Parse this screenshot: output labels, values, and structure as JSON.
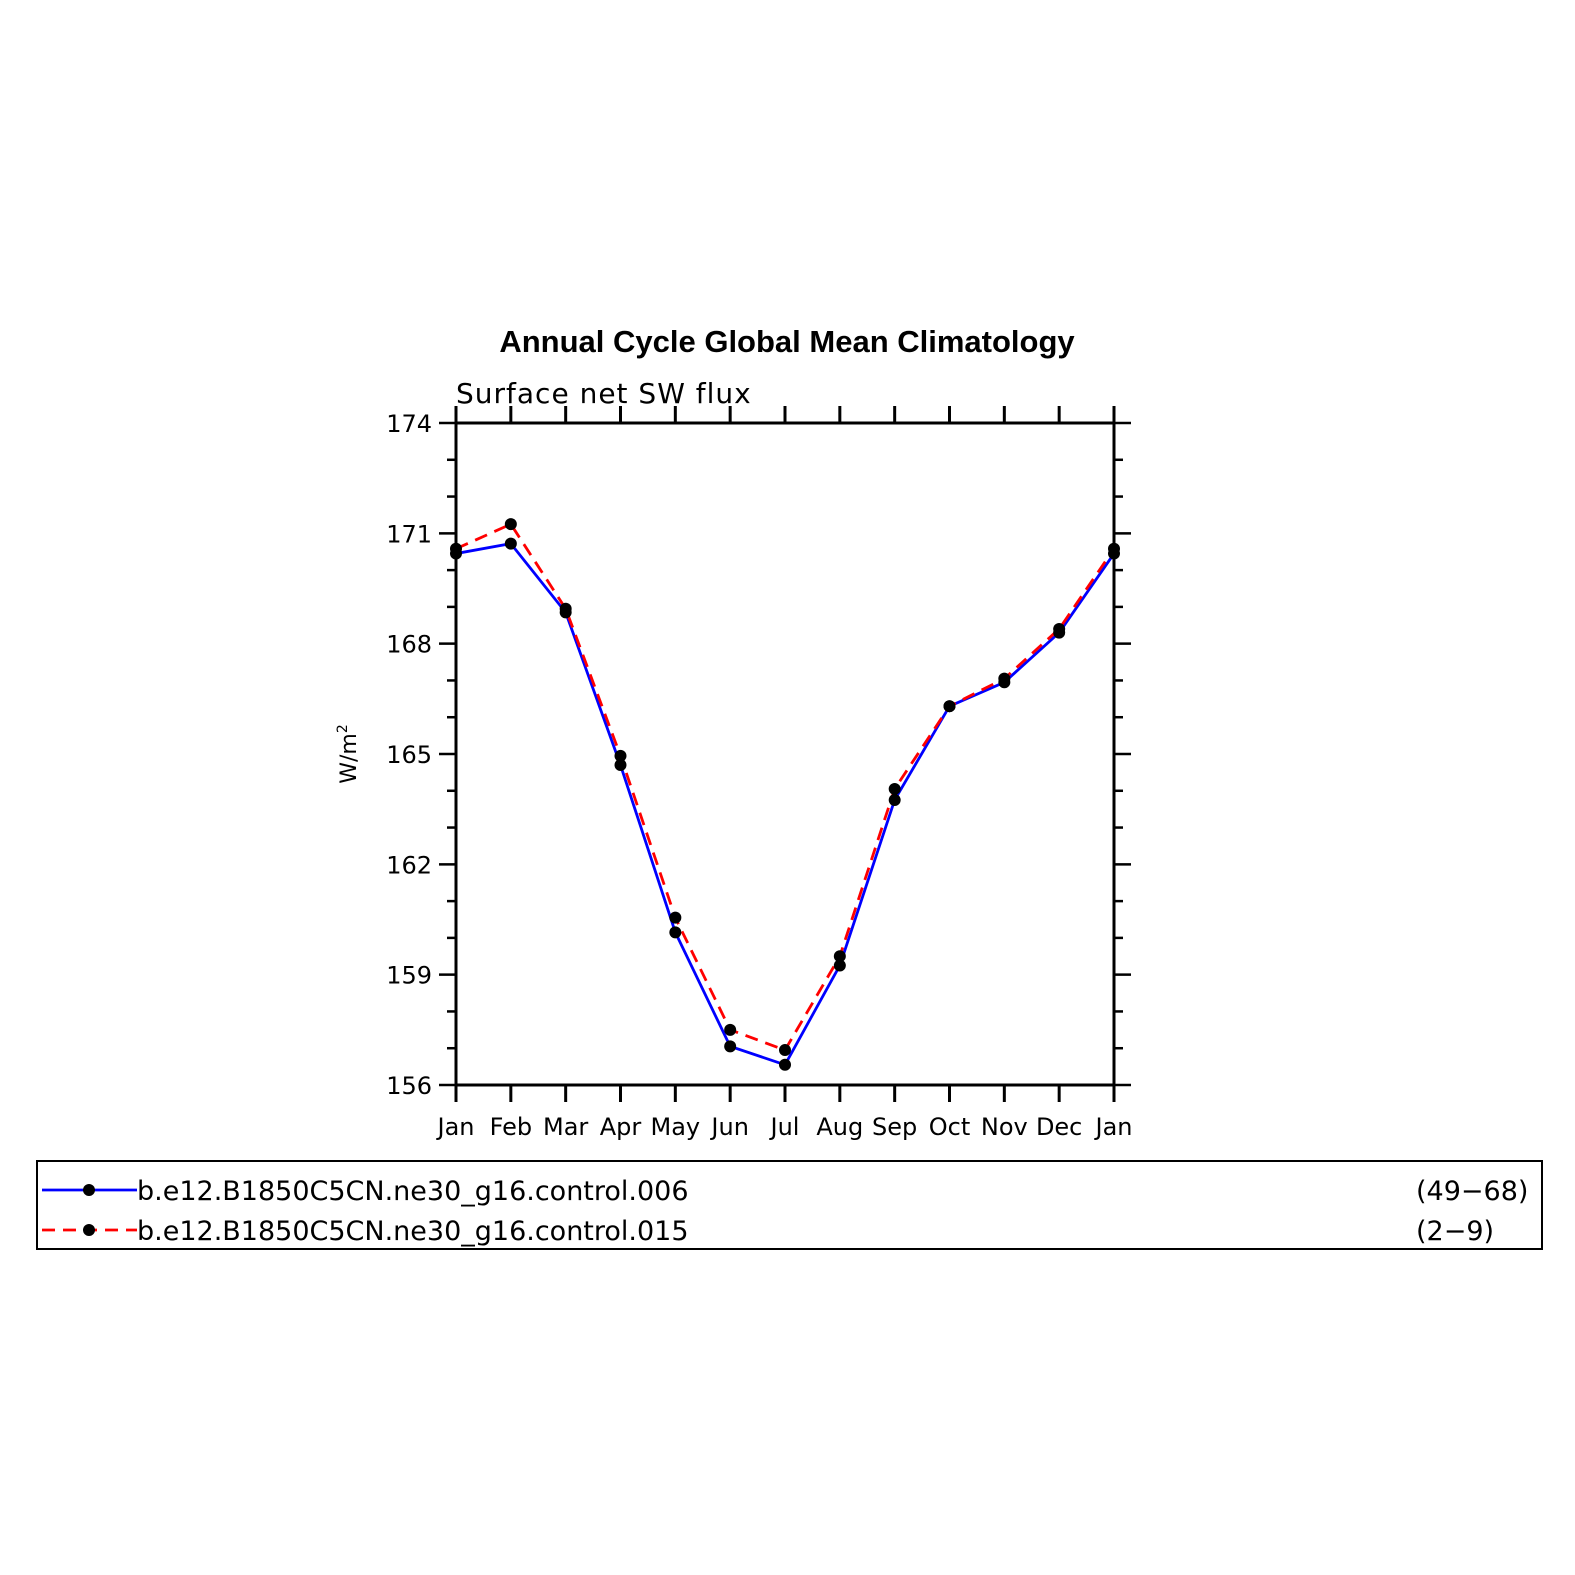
{
  "chart_data": {
    "type": "line",
    "title": "Annual Cycle Global Mean Climatology",
    "subtitle": "Surface net SW flux",
    "ylabel_base": "W/m",
    "ylabel_sup": "2",
    "categories": [
      "Jan",
      "Feb",
      "Mar",
      "Apr",
      "May",
      "Jun",
      "Jul",
      "Aug",
      "Sep",
      "Oct",
      "Nov",
      "Dec",
      "Jan"
    ],
    "ylim": [
      156,
      174
    ],
    "yticks": [
      "156",
      "159",
      "162",
      "165",
      "168",
      "171",
      "174"
    ],
    "series": [
      {
        "name": "b.e12.B1850C5CN.ne30_g16.control.006",
        "years": "(49−68)",
        "color": "#0000ff",
        "dash": "solid",
        "values": [
          170.45,
          170.72,
          168.85,
          164.7,
          160.15,
          157.05,
          156.55,
          159.25,
          163.75,
          166.3,
          166.95,
          168.3,
          170.45
        ]
      },
      {
        "name": "b.e12.B1850C5CN.ne30_g16.control.015",
        "years": "(2−9)",
        "color": "#ff0000",
        "dash": "dashed",
        "values": [
          170.58,
          171.25,
          168.95,
          164.95,
          160.55,
          157.5,
          156.95,
          159.5,
          164.05,
          166.3,
          167.05,
          168.4,
          170.58
        ]
      }
    ],
    "marker_color": "#000000",
    "grid": false,
    "legend_position": "bottom"
  }
}
